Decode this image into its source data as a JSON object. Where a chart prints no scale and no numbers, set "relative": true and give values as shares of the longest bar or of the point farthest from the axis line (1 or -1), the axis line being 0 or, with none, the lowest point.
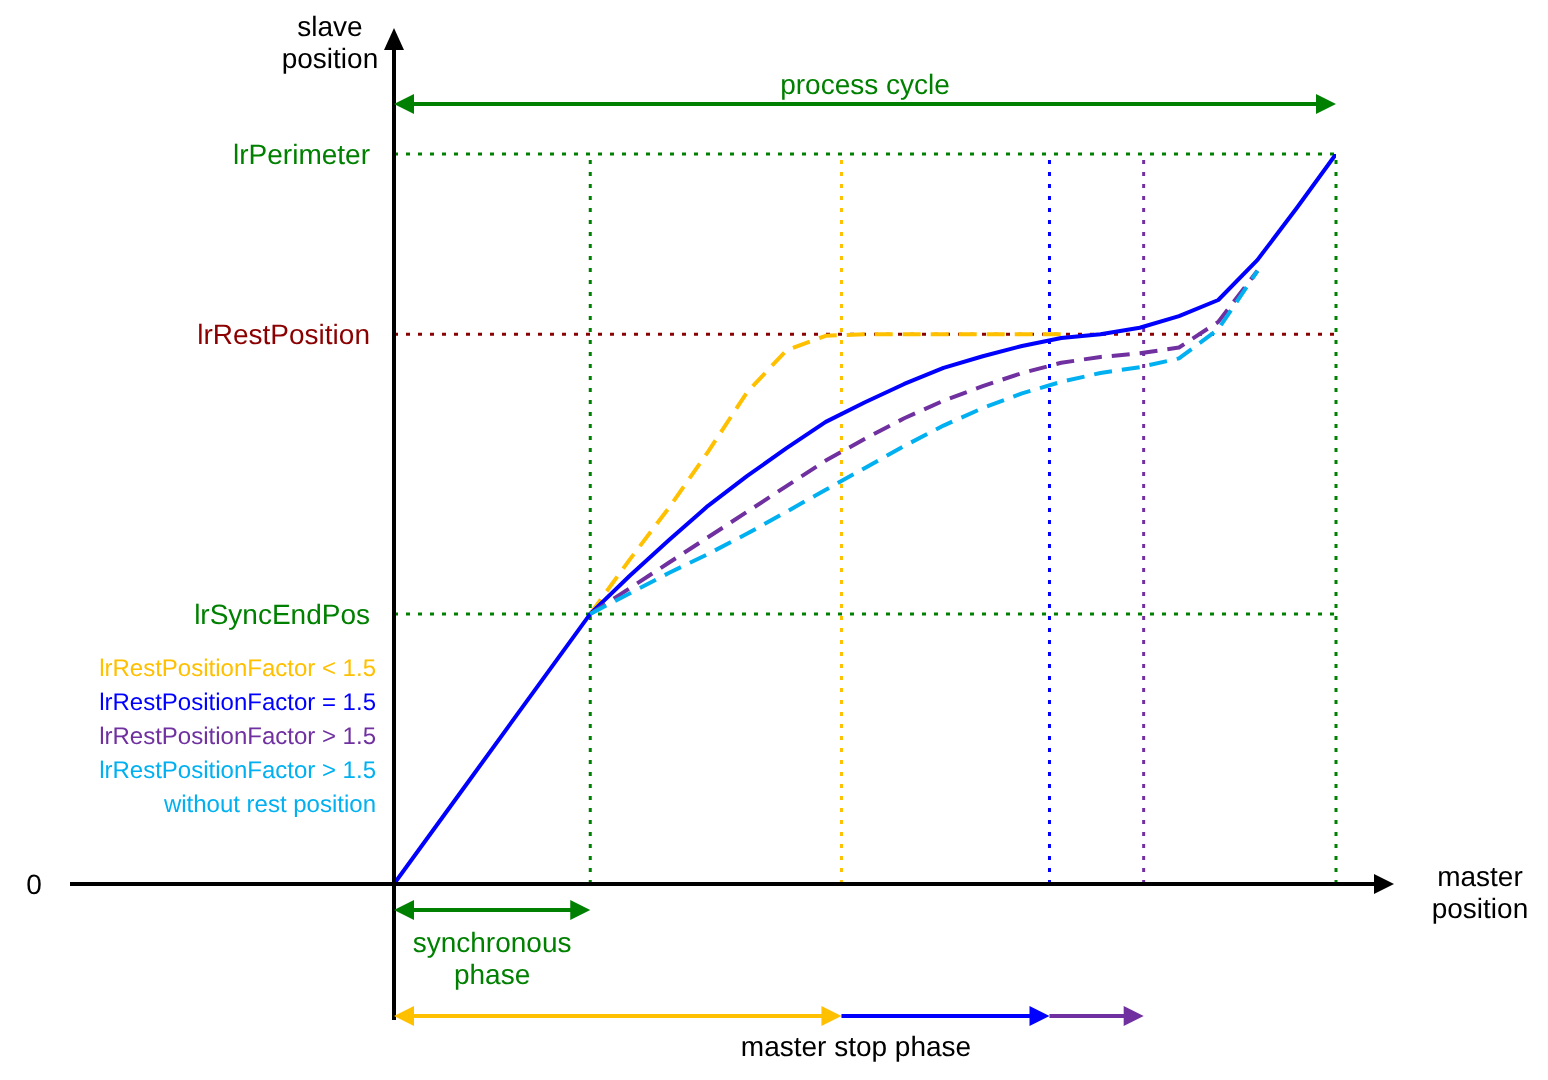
{
  "chart_data": {
    "type": "line",
    "relative": true,
    "xlabel": "master\nposition",
    "ylabel": "slave\nposition",
    "tick_labels": false,
    "grid": false,
    "categories": [
      null,
      null,
      null,
      null,
      null,
      null,
      null,
      null,
      null,
      null,
      null,
      null,
      null,
      null,
      null,
      null,
      null,
      null,
      null,
      null,
      null,
      null,
      null,
      null,
      null
    ],
    "series": [
      {
        "name": "lrRestPositionFactor < 1.5",
        "color": "#ffc000",
        "line_style": "dashed",
        "values": [
          null,
          null,
          null,
          null,
          null,
          0.37,
          0.444,
          0.515,
          0.592,
          0.674,
          0.731,
          0.751,
          0.753,
          0.753,
          0.753,
          0.753,
          0.753,
          0.753,
          null,
          null,
          null,
          null,
          null,
          null,
          null
        ]
      },
      {
        "name": "lrRestPositionFactor = 1.5",
        "color": "#0000ff",
        "line_style": "solid",
        "values": [
          0,
          0.074,
          0.148,
          0.222,
          0.296,
          0.37,
          0.422,
          0.471,
          0.518,
          0.559,
          0.597,
          0.633,
          0.66,
          0.685,
          0.707,
          0.723,
          0.737,
          0.748,
          0.753,
          0.762,
          0.778,
          0.8,
          0.855,
          0.926,
          1
        ]
      },
      {
        "name": "lrRestPositionFactor > 1.5",
        "color": "#7030a0",
        "line_style": "dashed",
        "values": [
          null,
          null,
          null,
          null,
          null,
          0.37,
          0.405,
          0.44,
          0.475,
          0.51,
          0.545,
          0.58,
          0.61,
          0.638,
          0.662,
          0.682,
          0.7,
          0.714,
          0.722,
          0.727,
          0.735,
          0.77,
          0.84,
          null,
          null
        ]
      },
      {
        "name": "lrRestPositionFactor > 1.5 without rest position",
        "color": "#00b0f0",
        "line_style": "dashed",
        "values": [
          null,
          null,
          null,
          null,
          null,
          0.37,
          0.398,
          0.426,
          0.452,
          0.48,
          0.51,
          0.54,
          0.57,
          0.6,
          0.628,
          0.652,
          0.672,
          0.688,
          0.7,
          0.708,
          0.72,
          0.76,
          0.84,
          null,
          null
        ]
      }
    ],
    "ref_lines": [
      {
        "axis": "y",
        "value": 1,
        "label": "lrPerimeter",
        "color": "#008000",
        "line_style": "dotted"
      },
      {
        "axis": "y",
        "value": 0.753,
        "label": "lrRestPosition",
        "color": "#8b0000",
        "line_style": "dotted"
      },
      {
        "axis": "y",
        "value": 0.37,
        "label": "lrSyncEndPos",
        "color": "#008000",
        "line_style": "dotted"
      }
    ],
    "annotations": [
      "process cycle",
      "synchronous\nphase",
      "master stop phase",
      "0"
    ]
  }
}
